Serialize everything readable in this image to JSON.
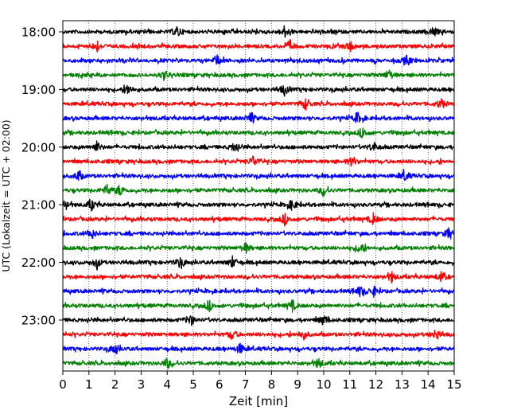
{
  "chart_data": {
    "type": "line",
    "xlabel": "Zeit  [min]",
    "ylabel": "UTC (Lokalzeit = UTC + 02:00)",
    "xlim": [
      0,
      15
    ],
    "x_ticks": [
      "0",
      "1",
      "2",
      "3",
      "4",
      "5",
      "6",
      "7",
      "8",
      "9",
      "10",
      "11",
      "12",
      "13",
      "14",
      "15"
    ],
    "y_tick_labels": [
      "18:00",
      "19:00",
      "20:00",
      "21:00",
      "22:00",
      "23:00"
    ],
    "grid": "vertical dotted at each minute",
    "trace_interval_min": 15,
    "trace_count": 24,
    "trace_start_utc": "18:00",
    "trace_colors": [
      "#000000",
      "#ff0000",
      "#0000ff",
      "#008000"
    ],
    "traces": [
      {
        "start": "18:00",
        "color": "#000000",
        "events_min": [
          4.4,
          8.5,
          14.2
        ]
      },
      {
        "start": "18:15",
        "color": "#ff0000",
        "events_min": [
          1.3,
          8.7,
          11.0
        ]
      },
      {
        "start": "18:30",
        "color": "#0000ff",
        "events_min": [
          5.9,
          13.2
        ]
      },
      {
        "start": "18:45",
        "color": "#008000",
        "events_min": [
          3.9,
          12.5
        ]
      },
      {
        "start": "19:00",
        "color": "#000000",
        "events_min": [
          2.5,
          8.5
        ]
      },
      {
        "start": "19:15",
        "color": "#ff0000",
        "events_min": [
          9.3,
          14.5
        ]
      },
      {
        "start": "19:30",
        "color": "#0000ff",
        "events_min": [
          7.2,
          11.3
        ]
      },
      {
        "start": "19:45",
        "color": "#008000",
        "events_min": [
          11.5
        ]
      },
      {
        "start": "20:00",
        "color": "#000000",
        "events_min": [
          1.3,
          6.6,
          11.9
        ]
      },
      {
        "start": "20:15",
        "color": "#ff0000",
        "events_min": [
          7.3,
          11.1
        ]
      },
      {
        "start": "20:30",
        "color": "#0000ff",
        "events_min": [
          0.6,
          13.1
        ]
      },
      {
        "start": "20:45",
        "color": "#008000",
        "events_min": [
          1.7,
          2.2,
          10.0
        ]
      },
      {
        "start": "21:00",
        "color": "#000000",
        "events_min": [
          0.1,
          1.1,
          8.8
        ]
      },
      {
        "start": "21:15",
        "color": "#ff0000",
        "events_min": [
          8.5,
          11.9
        ]
      },
      {
        "start": "21:30",
        "color": "#0000ff",
        "events_min": [
          1.1,
          14.8
        ]
      },
      {
        "start": "21:45",
        "color": "#008000",
        "events_min": [
          7.0,
          11.4
        ]
      },
      {
        "start": "22:00",
        "color": "#000000",
        "events_min": [
          1.3,
          4.5,
          6.5
        ]
      },
      {
        "start": "22:15",
        "color": "#ff0000",
        "events_min": [
          12.6,
          14.5
        ]
      },
      {
        "start": "22:30",
        "color": "#0000ff",
        "events_min": [
          11.4,
          11.9
        ]
      },
      {
        "start": "22:45",
        "color": "#008000",
        "events_min": [
          5.6,
          8.8
        ]
      },
      {
        "start": "23:00",
        "color": "#000000",
        "events_min": [
          4.9,
          10.0
        ]
      },
      {
        "start": "23:15",
        "color": "#ff0000",
        "events_min": [
          6.5,
          9.2,
          14.3
        ]
      },
      {
        "start": "23:30",
        "color": "#0000ff",
        "events_min": [
          2.0,
          6.8
        ]
      },
      {
        "start": "23:45",
        "color": "#008000",
        "events_min": [
          4.0,
          9.8
        ]
      }
    ]
  }
}
